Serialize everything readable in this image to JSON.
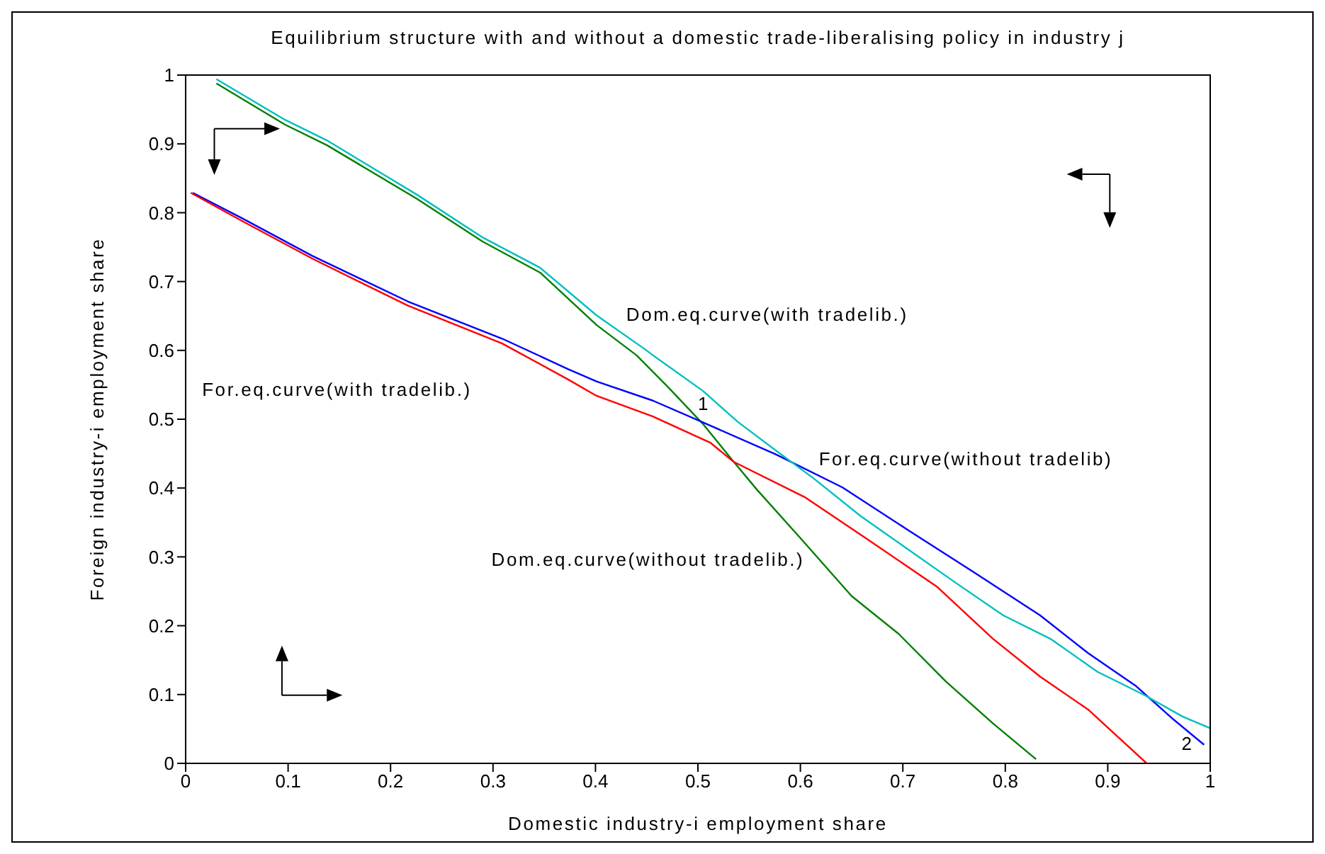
{
  "chart_data": {
    "type": "line",
    "title": "Equilibrium structure with and without a domestic trade-liberalising policy in industry j",
    "xlabel": "Domestic industry-i employment share",
    "ylabel": "Foreign industry-i employment share",
    "xlim": [
      0,
      1
    ],
    "ylim": [
      0,
      1
    ],
    "xticks": [
      0,
      0.1,
      0.2,
      0.3,
      0.4,
      0.5,
      0.6,
      0.7,
      0.8,
      0.9,
      1
    ],
    "yticks": [
      0,
      0.1,
      0.2,
      0.3,
      0.4,
      0.5,
      0.6,
      0.7,
      0.8,
      0.9,
      1
    ],
    "grid": false,
    "marker": "none",
    "line_style": "solid",
    "series": [
      {
        "name": "Dom.eq.curve(with tradelib.)",
        "color": "#00bfbf",
        "x": [
          0.03,
          0.097,
          0.138,
          0.226,
          0.29,
          0.346,
          0.401,
          0.447,
          0.456,
          0.505,
          0.539,
          0.581,
          0.613,
          0.659,
          0.705,
          0.751,
          0.798,
          0.844,
          0.89,
          0.936,
          0.973,
          1.0
        ],
        "values": [
          0.994,
          0.935,
          0.905,
          0.826,
          0.764,
          0.72,
          0.651,
          0.603,
          0.593,
          0.541,
          0.496,
          0.449,
          0.414,
          0.359,
          0.311,
          0.263,
          0.215,
          0.181,
          0.133,
          0.099,
          0.068,
          0.051
        ]
      },
      {
        "name": "For.eq.curve(with tradelib.)",
        "color": "#ff0000",
        "x": [
          0.005,
          0.055,
          0.124,
          0.217,
          0.309,
          0.373,
          0.401,
          0.456,
          0.512,
          0.535,
          0.604,
          0.673,
          0.733,
          0.788,
          0.834,
          0.881,
          0.938
        ],
        "values": [
          0.829,
          0.788,
          0.733,
          0.665,
          0.61,
          0.558,
          0.534,
          0.504,
          0.466,
          0.438,
          0.387,
          0.318,
          0.257,
          0.181,
          0.126,
          0.078,
          0.0
        ]
      },
      {
        "name": "For.eq.curve(without tradelib)",
        "color": "#0000ff",
        "x": [
          0.007,
          0.055,
          0.124,
          0.217,
          0.309,
          0.373,
          0.401,
          0.456,
          0.504,
          0.576,
          0.641,
          0.705,
          0.77,
          0.834,
          0.881,
          0.927,
          0.964,
          0.994
        ],
        "values": [
          0.829,
          0.792,
          0.737,
          0.671,
          0.617,
          0.573,
          0.555,
          0.527,
          0.496,
          0.449,
          0.401,
          0.339,
          0.277,
          0.215,
          0.16,
          0.113,
          0.064,
          0.027
        ]
      },
      {
        "name": "Dom.eq.curve(without tradelib.)",
        "color": "#008000",
        "x": [
          0.03,
          0.097,
          0.138,
          0.226,
          0.29,
          0.346,
          0.401,
          0.44,
          0.47,
          0.505,
          0.535,
          0.558,
          0.599,
          0.65,
          0.696,
          0.742,
          0.788,
          0.83
        ],
        "values": [
          0.988,
          0.928,
          0.898,
          0.82,
          0.758,
          0.713,
          0.637,
          0.593,
          0.548,
          0.493,
          0.438,
          0.397,
          0.329,
          0.243,
          0.188,
          0.119,
          0.058,
          0.006
        ]
      }
    ],
    "annotations": [
      "1",
      "2"
    ]
  }
}
